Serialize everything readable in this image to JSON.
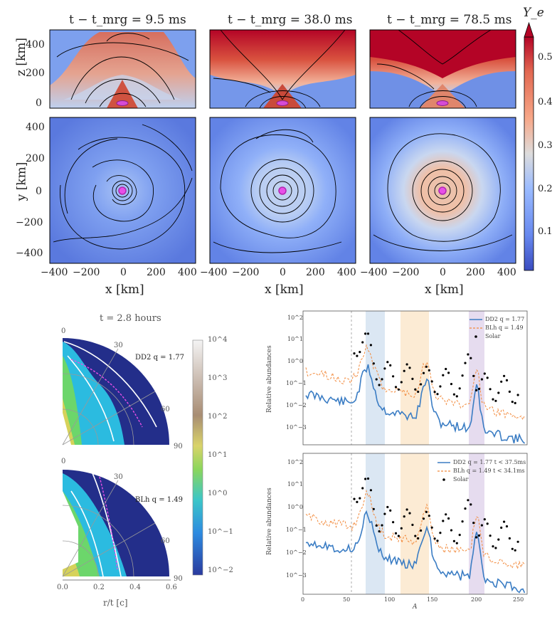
{
  "top": {
    "panel_titles": [
      "t − t_mrg = 9.5 ms",
      "t − t_mrg = 38.0 ms",
      "t − t_mrg = 78.5 ms"
    ],
    "z_axis_label": "z [km]",
    "y_axis_label": "y [km]",
    "x_axis_label": "x [km]",
    "z_ticks": [
      "400",
      "200",
      "0"
    ],
    "y_ticks": [
      "400",
      "200",
      "0",
      "−200",
      "−400"
    ],
    "x_ticks": [
      "−400",
      "−200",
      "0",
      "200",
      "400"
    ],
    "colorbar": {
      "label": "Y_e",
      "ticks": [
        "0.5",
        "0.4",
        "0.3",
        "0.2",
        "0.1"
      ],
      "colors": [
        "#3a4cc0",
        "#6788ee",
        "#9abbff",
        "#c9d7f0",
        "#edd1c2",
        "#f7a889",
        "#e26952",
        "#b40426"
      ]
    }
  },
  "bottom_left": {
    "title": "t = 2.8 hours",
    "panels": [
      {
        "label": "DD2 q = 1.77",
        "angles": [
          "0",
          "30",
          "60",
          "90"
        ]
      },
      {
        "label": "BLh q = 1.49",
        "angles": [
          "0",
          "30",
          "60",
          "90"
        ]
      }
    ],
    "x_ticks": [
      "0.0",
      "0.2",
      "0.4",
      "0.6"
    ],
    "x_label": "r/t [c]",
    "colorbar_ticks": [
      "10^4",
      "10^3",
      "10^2",
      "10^1",
      "10^0",
      "10^−1",
      "10^−2"
    ]
  },
  "bottom_right": {
    "y_label": "Relative abundances",
    "x_label": "A",
    "x_ticks": [
      "0",
      "50",
      "100",
      "150",
      "200",
      "250"
    ],
    "y_ticks": [
      "10^2",
      "10^1",
      "10^0",
      "10^−1",
      "10^−2",
      "10^−3"
    ],
    "top_legend": [
      "DD2 q = 1.77",
      "BLh q = 1.49",
      "Solar"
    ],
    "bottom_legend": [
      "DD2 q = 1.77 t < 37.5ms",
      "BLh q = 1.49 t < 34.1ms",
      "Solar"
    ],
    "series_colors": {
      "dd2": "#3b7dc4",
      "blh": "#f28a3c",
      "solar": "#000000"
    }
  }
}
